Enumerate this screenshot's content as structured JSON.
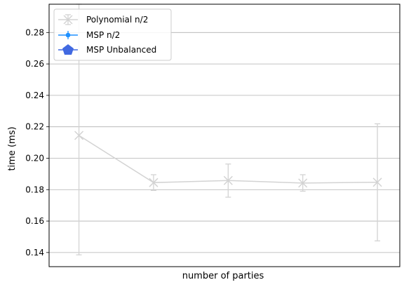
{
  "chart_data": {
    "type": "line",
    "title": "",
    "xlabel": "number of parties",
    "ylabel": "time (ms)",
    "xlim": [
      0.6,
      5.3
    ],
    "ylim": [
      0.131,
      0.298
    ],
    "yticks": [
      "0.14",
      "0.16",
      "0.18",
      "0.20",
      "0.22",
      "0.24",
      "0.26",
      "0.28"
    ],
    "y_grid": true,
    "x_grid": false,
    "x_tick_labels_visible": false,
    "legend_position": "top-left",
    "series": [
      {
        "name": "Polynomial n/2",
        "marker": "x",
        "color": "#d3d3d3",
        "points": [
          {
            "x": 1,
            "y": 0.2145,
            "err_low": 0.1385,
            "err_high": 0.298
          },
          {
            "x": 2,
            "y": 0.1845,
            "err_low": 0.1795,
            "err_high": 0.1895
          },
          {
            "x": 3,
            "y": 0.1858,
            "err_low": 0.1752,
            "err_high": 0.1963
          },
          {
            "x": 4,
            "y": 0.1842,
            "err_low": 0.179,
            "err_high": 0.1895
          },
          {
            "x": 5,
            "y": 0.1847,
            "err_low": 0.1474,
            "err_high": 0.2219
          }
        ]
      },
      {
        "name": "MSP n/2",
        "marker": "circle",
        "color": "#1e90ff",
        "points": []
      },
      {
        "name": "MSP Unbalanced",
        "marker": "pentagon",
        "color": "#4169e1",
        "points": []
      }
    ]
  }
}
